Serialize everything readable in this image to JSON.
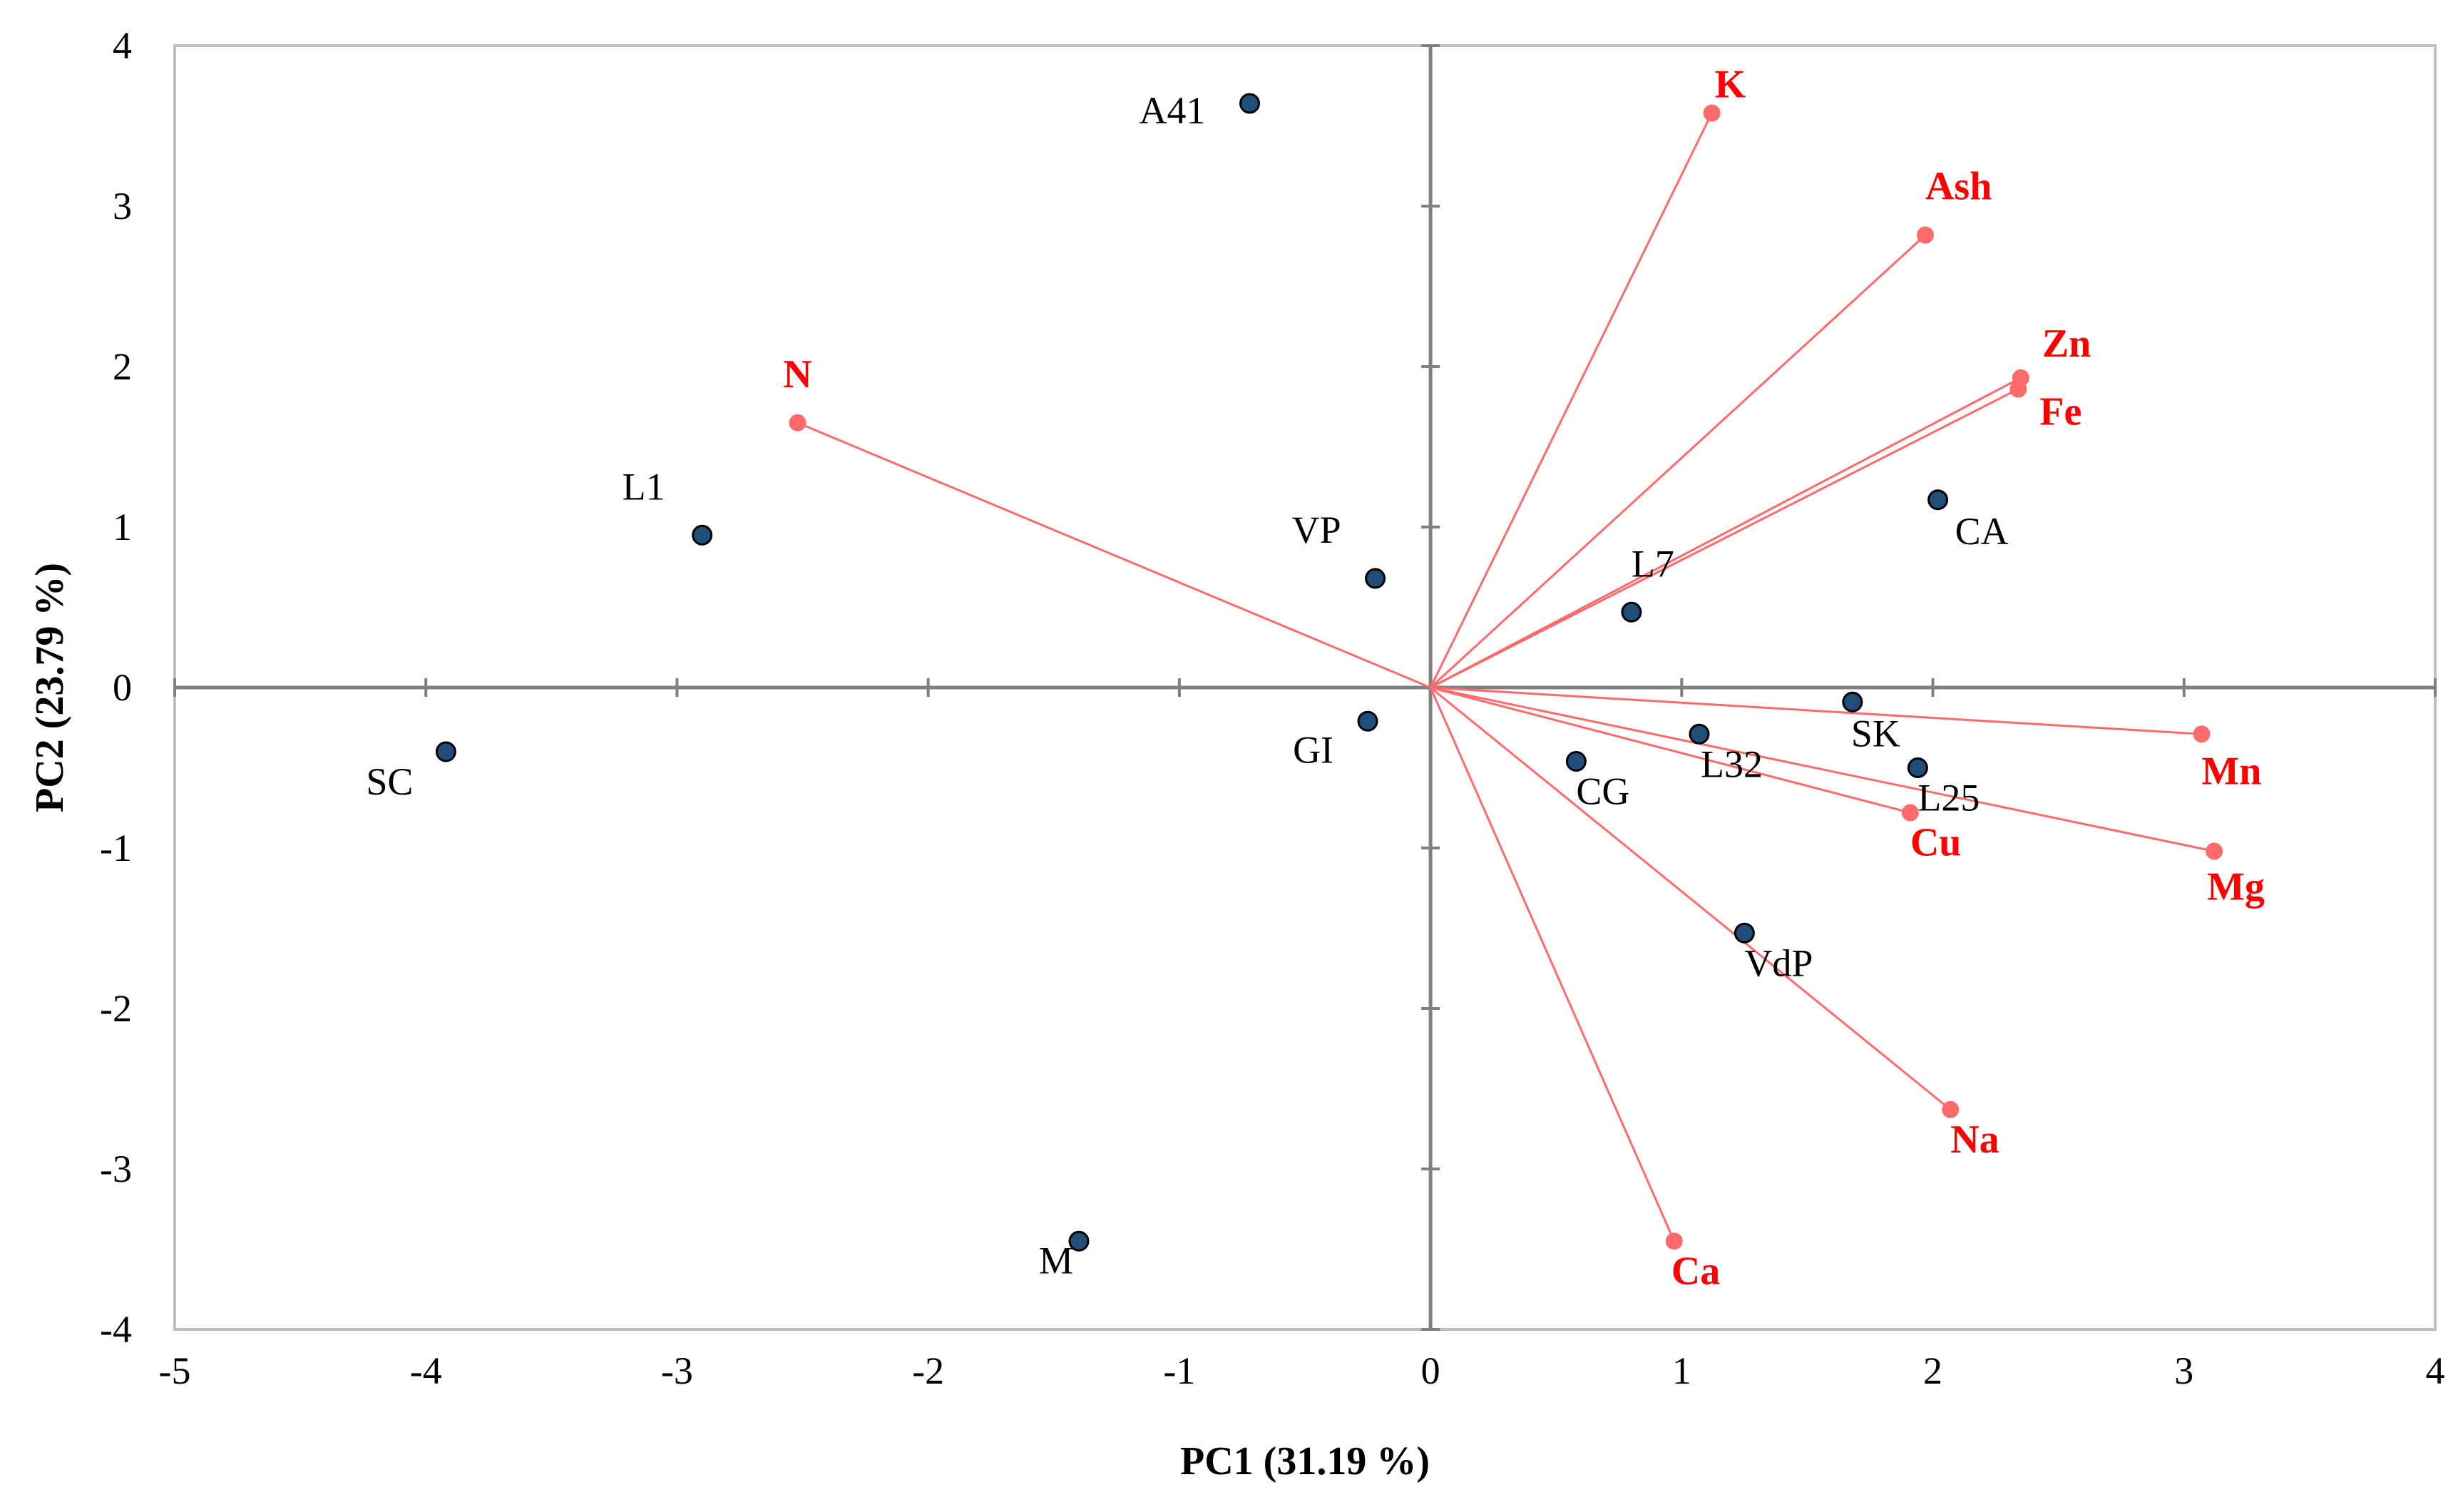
{
  "chart_data": {
    "type": "scatter",
    "subtype": "pca-biplot",
    "xlabel": "PC1 (31.19 %)",
    "ylabel": "PC2 (23.79 %)",
    "xlim": [
      -5,
      4
    ],
    "ylim": [
      -4,
      4
    ],
    "xticks": [
      -5,
      -4,
      -3,
      -2,
      -1,
      0,
      1,
      2,
      3,
      4
    ],
    "yticks": [
      -4,
      -3,
      -2,
      -1,
      0,
      1,
      2,
      3,
      4
    ],
    "colors": {
      "vector": "#ff0000",
      "vector_line": "#ff6b6b",
      "point_fill": "#1f4e79",
      "axis": "#808080",
      "frame": "#bfbfbf"
    },
    "observations": [
      {
        "label": "A41",
        "x": -0.72,
        "y": 3.64
      },
      {
        "label": "L1",
        "x": -2.9,
        "y": 0.95
      },
      {
        "label": "VP",
        "x": -0.22,
        "y": 0.68
      },
      {
        "label": "SC",
        "x": -3.92,
        "y": -0.4
      },
      {
        "label": "GI",
        "x": -0.25,
        "y": -0.21
      },
      {
        "label": "M",
        "x": -1.4,
        "y": -3.45
      },
      {
        "label": "L7",
        "x": 0.8,
        "y": 0.47
      },
      {
        "label": "CA",
        "x": 2.02,
        "y": 1.17
      },
      {
        "label": "SK",
        "x": 1.68,
        "y": -0.09
      },
      {
        "label": "L32",
        "x": 1.07,
        "y": -0.29
      },
      {
        "label": "CG",
        "x": 0.58,
        "y": -0.46
      },
      {
        "label": "L25",
        "x": 1.94,
        "y": -0.5
      },
      {
        "label": "VdP",
        "x": 1.25,
        "y": -1.53
      }
    ],
    "variables": [
      {
        "label": "K",
        "x": 1.12,
        "y": 3.58
      },
      {
        "label": "Ash",
        "x": 1.97,
        "y": 2.82
      },
      {
        "label": "Zn",
        "x": 2.35,
        "y": 1.93
      },
      {
        "label": "Fe",
        "x": 2.34,
        "y": 1.86
      },
      {
        "label": "N",
        "x": -2.52,
        "y": 1.65
      },
      {
        "label": "Mn",
        "x": 3.07,
        "y": -0.29
      },
      {
        "label": "Mg",
        "x": 3.12,
        "y": -1.02
      },
      {
        "label": "Cu",
        "x": 1.91,
        "y": -0.78
      },
      {
        "label": "Na",
        "x": 2.07,
        "y": -2.63
      },
      {
        "label": "Ca",
        "x": 0.97,
        "y": -3.45
      }
    ]
  }
}
